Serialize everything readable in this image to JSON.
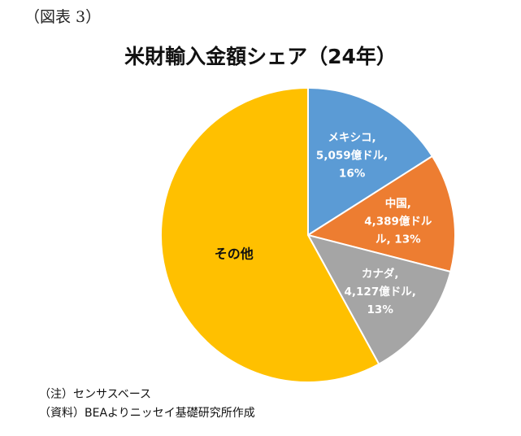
{
  "figure_label": "（図表 3）",
  "chart_data": {
    "type": "pie",
    "title": "米財輸入金額シェア（24年）",
    "start_angle_deg": 0,
    "direction": "clockwise",
    "slices": [
      {
        "name": "メキシコ",
        "value": 5059,
        "unit": "億ドル",
        "percent": 16,
        "color": "#5B9BD5",
        "label_lines": [
          "メキシコ,",
          "5,059億ドル,",
          "16%"
        ]
      },
      {
        "name": "中国",
        "value": 4389,
        "unit": "億ドル",
        "percent": 13,
        "color": "#ED7D31",
        "label_lines": [
          "中国,",
          "4,389億ドル",
          "ル, 13%"
        ]
      },
      {
        "name": "カナダ",
        "value": 4127,
        "unit": "億ドル",
        "percent": 13,
        "color": "#A5A5A5",
        "label_lines": [
          "カナダ,",
          "4,127億ドル,",
          "13%"
        ]
      },
      {
        "name": "その他",
        "percent": 58,
        "color": "#FFC000",
        "label_lines": [
          "その他"
        ]
      }
    ]
  },
  "notes": {
    "note": "（注）センサスベース",
    "source": "（資料）BEAよりニッセイ基礎研究所作成"
  }
}
